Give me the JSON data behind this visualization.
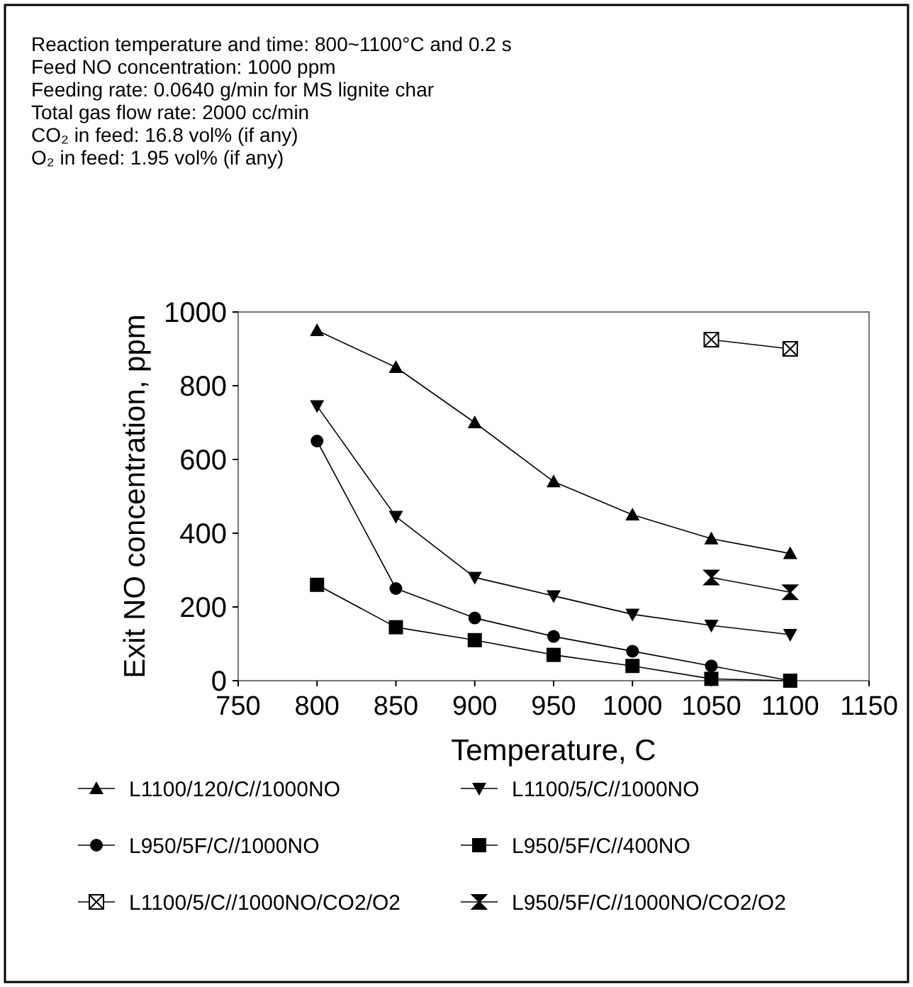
{
  "chart_data": {
    "type": "line",
    "annotations": [
      "Reaction temperature and time: 800~1100°C and 0.2 s",
      "Feed NO concentration: 1000 ppm",
      "Feeding rate: 0.0640 g/min for MS lignite char",
      "Total gas flow rate: 2000 cc/min",
      "CO₂ in feed: 16.8 vol% (if any)",
      "O₂ in feed: 1.95 vol% (if any)"
    ],
    "xlabel": "Temperature, C",
    "ylabel": "Exit NO concentration, ppm",
    "x": [
      800,
      850,
      900,
      950,
      1000,
      1050,
      1100
    ],
    "xlim": [
      750,
      1150
    ],
    "xticks": [
      750,
      800,
      850,
      900,
      950,
      1000,
      1050,
      1100,
      1150
    ],
    "ylim": [
      0,
      1000
    ],
    "yticks": [
      0,
      200,
      400,
      600,
      800,
      1000
    ],
    "grid": false,
    "legend": "bottom",
    "line_style": "solid",
    "series": [
      {
        "name": "L1100/120/C//1000NO",
        "color": "#000000",
        "marker": "triangle",
        "values": [
          950,
          850,
          700,
          540,
          450,
          385,
          345
        ]
      },
      {
        "name": "L1100/5/C//1000NO",
        "color": "#000000",
        "marker": "triangle-down",
        "values": [
          745,
          445,
          280,
          230,
          180,
          150,
          125
        ]
      },
      {
        "name": "L950/5F/C//1000NO",
        "color": "#000000",
        "marker": "circle",
        "values": [
          650,
          250,
          170,
          120,
          80,
          40,
          0
        ]
      },
      {
        "name": "L950/5F/C//400NO",
        "color": "#000000",
        "marker": "square",
        "values": [
          260,
          145,
          110,
          70,
          40,
          5,
          0
        ]
      },
      {
        "name": "L1100/5/C//1000NO/CO2/O2",
        "color": "#000000",
        "marker": "square-cross",
        "values": [
          null,
          null,
          null,
          null,
          null,
          925,
          900
        ]
      },
      {
        "name": "L950/5F/C//1000NO/CO2/O2",
        "color": "#000000",
        "marker": "diamond",
        "values": [
          null,
          null,
          null,
          null,
          null,
          280,
          240
        ]
      }
    ]
  }
}
